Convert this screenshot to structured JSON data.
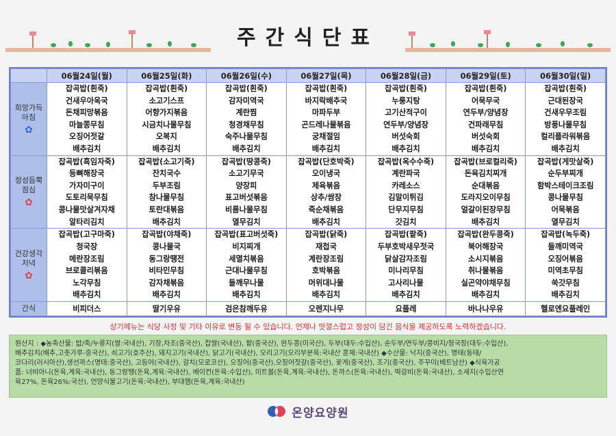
{
  "title": "주간식단표",
  "days": [
    "06월24일(월)",
    "06월25일(화)",
    "06월26일(수)",
    "06월27일(목)",
    "06월28일(금)",
    "06월29일(토)",
    "06월30일(일)"
  ],
  "meals": [
    {
      "label_lines": [
        "희망가득",
        "아침"
      ],
      "cells": [
        [
          "잡곡밥(흰죽)",
          "건새우아욱국",
          "돈채피망볶음",
          "마늘쫑무침",
          "오징어젓갈",
          "배추김치"
        ],
        [
          "잡곡밥(흰죽)",
          "소고기스프",
          "어향가지볶음",
          "시금치나물무침",
          "오복지",
          "배추김치"
        ],
        [
          "잡곡밥(흰죽)",
          "감자미역국",
          "계란찜",
          "청경채무침",
          "숙주나물무침",
          "배추김치"
        ],
        [
          "잡곡밥(흰죽)",
          "바지락배추국",
          "마파두부",
          "곤드레나물볶음",
          "궁채절임",
          "배추김치"
        ],
        [
          "잡곡밥(흰죽)",
          "누룽지탕",
          "고기산적구이",
          "연두부/양념장",
          "버섯숙회",
          "배추김치"
        ],
        [
          "잡곡밥(흰죽)",
          "어묵무국",
          "연두부/양념장",
          "건파래무침",
          "버섯숙회",
          "배추김치"
        ],
        [
          "잡곡밥(흰죽)",
          "근대된장국",
          "건새우무조림",
          "방풍나물무침",
          "컬리플라워볶음",
          "배추김치"
        ]
      ]
    },
    {
      "label_lines": [
        "정성듬뿍",
        "점심"
      ],
      "cells": [
        [
          "잡곡밥(흑임자죽)",
          "등뼈해장국",
          "가자미구이",
          "도토리묵무침",
          "콩나물맛살겨자채",
          "알타리김치"
        ],
        [
          "잡곡밥(소고기죽)",
          "잔치국수",
          "두부조림",
          "참나물무침",
          "토란대볶음",
          "배추김치"
        ],
        [
          "잡곡밥(땅콩죽)",
          "소고기무국",
          "양장피",
          "표고버섯볶음",
          "비름나물무침",
          "열무김치"
        ],
        [
          "잡곡밥(단호박죽)",
          "오이냉국",
          "제육볶음",
          "상추/쌈장",
          "죽순채볶음",
          "배추김치"
        ],
        [
          "잡곡밥(옥수수죽)",
          "계란파국",
          "카레소스",
          "김말이튀김",
          "단무지무침",
          "갓김치"
        ],
        [
          "잡곡밥(브로컬리죽)",
          "돈육김치찌개",
          "순대볶음",
          "도라지오이무침",
          "얼갈이된장무침",
          "배추김치"
        ],
        [
          "잡곡밥(게맛살죽)",
          "순두부찌개",
          "함박스테이크조림",
          "콩나물무침",
          "어묵볶음",
          "열무김치"
        ]
      ]
    },
    {
      "label_lines": [
        "건강생각",
        "저녁"
      ],
      "cells": [
        [
          "잡곡밥(고구마죽)",
          "청국장",
          "메란장조림",
          "브로콜리볶음",
          "노각무침",
          "배추김치"
        ],
        [
          "잡곡밥(야채죽)",
          "콩나물국",
          "동그랑땡전",
          "비타민무침",
          "감자채볶음",
          "배추김치"
        ],
        [
          "잡곡밥(표고버섯죽)",
          "비지찌개",
          "세멸치볶음",
          "근대나물무침",
          "들깨무나물",
          "배추김치"
        ],
        [
          "잡곡밥(닭죽)",
          "재첩국",
          "계란장조림",
          "호박볶음",
          "머위대나물",
          "배추김치"
        ],
        [
          "잡곡밥(팥죽)",
          "두부호박새우젓국",
          "닭살감자조림",
          "미나리무침",
          "고사리나물",
          "배추김치"
        ],
        [
          "잡곡밥(완두콩죽)",
          "북어해장국",
          "소시지볶음",
          "취나물볶음",
          "실곤약야채무침",
          "배추김치"
        ],
        [
          "잡곡밥(녹두죽)",
          "들깨미역국",
          "오징어볶음",
          "미역초무침",
          "쑥갓무침",
          "배추김치"
        ]
      ]
    }
  ],
  "snack": {
    "label": "간식",
    "items": [
      "비피더스",
      "딸기우유",
      "검은참깨두유",
      "오렌지나무",
      "요플레",
      "바나나우유",
      "헬로엔요플레인"
    ]
  },
  "notice": "상기메뉴는 식당 사정 및 기타 이유로 변동 될 수 있습니다. 언제나 맛깔스럽고 정성이 담긴 음식을 제공하도록 노력하겠습니다.",
  "origin": {
    "lines": [
      "원산지 : ◆농축산물: 밥/죽/누룽지(쌀:국내산), 기장,차조(중국산), 찹쌀(국내산), 팥(중국산), 완두콩(미국산), 두부(대두:수입산), 순두부/연두부/콩비지/청국장(대두:수입산),",
      "배추김치(배추,고춧가루-중국산), 쇠고기(호주산), 돼지고기(국내산), 닭고기(국내산), 오리고기(오리부분육:국내산 훈제:국내산)  ◆수산물: 낙지(중국산), 명태(동태/",
      "코다리(러시아산),생선까스(명태:중국산), 고등어(국내산), 갈치(모로코산), 오징어(중국산),오징어젓갈(중국산), 꽃게(중국산), 조기(중국산), 주꾸미(베트남산) ◆식육가공",
      "품: 너비아니(돈육,계육:국내산), 동그랑땡(돈육,계육:국내산), 베이컨(돈육:수입산), 미트볼(돈육,계육:국내산), 돈까스(돈육:국내산), 떡갈비(돈육:국내산), 소세지(수입산연",
      "육27%, 돈육26%:국산), 언양식불고기(돈육:국내산), 부대햄(돈육,계육:국내산)"
    ]
  },
  "brand": {
    "name": "온양요양원"
  },
  "colors": {
    "header_bg": "#c8d3f2",
    "label_bg": "#aebfe9",
    "border": "#8898d4",
    "origin_bg": "#b8dca8",
    "notice": "#d93030"
  },
  "icons": [
    "sprout-decoration",
    "flower-icon",
    "heart-logo-icon"
  ]
}
